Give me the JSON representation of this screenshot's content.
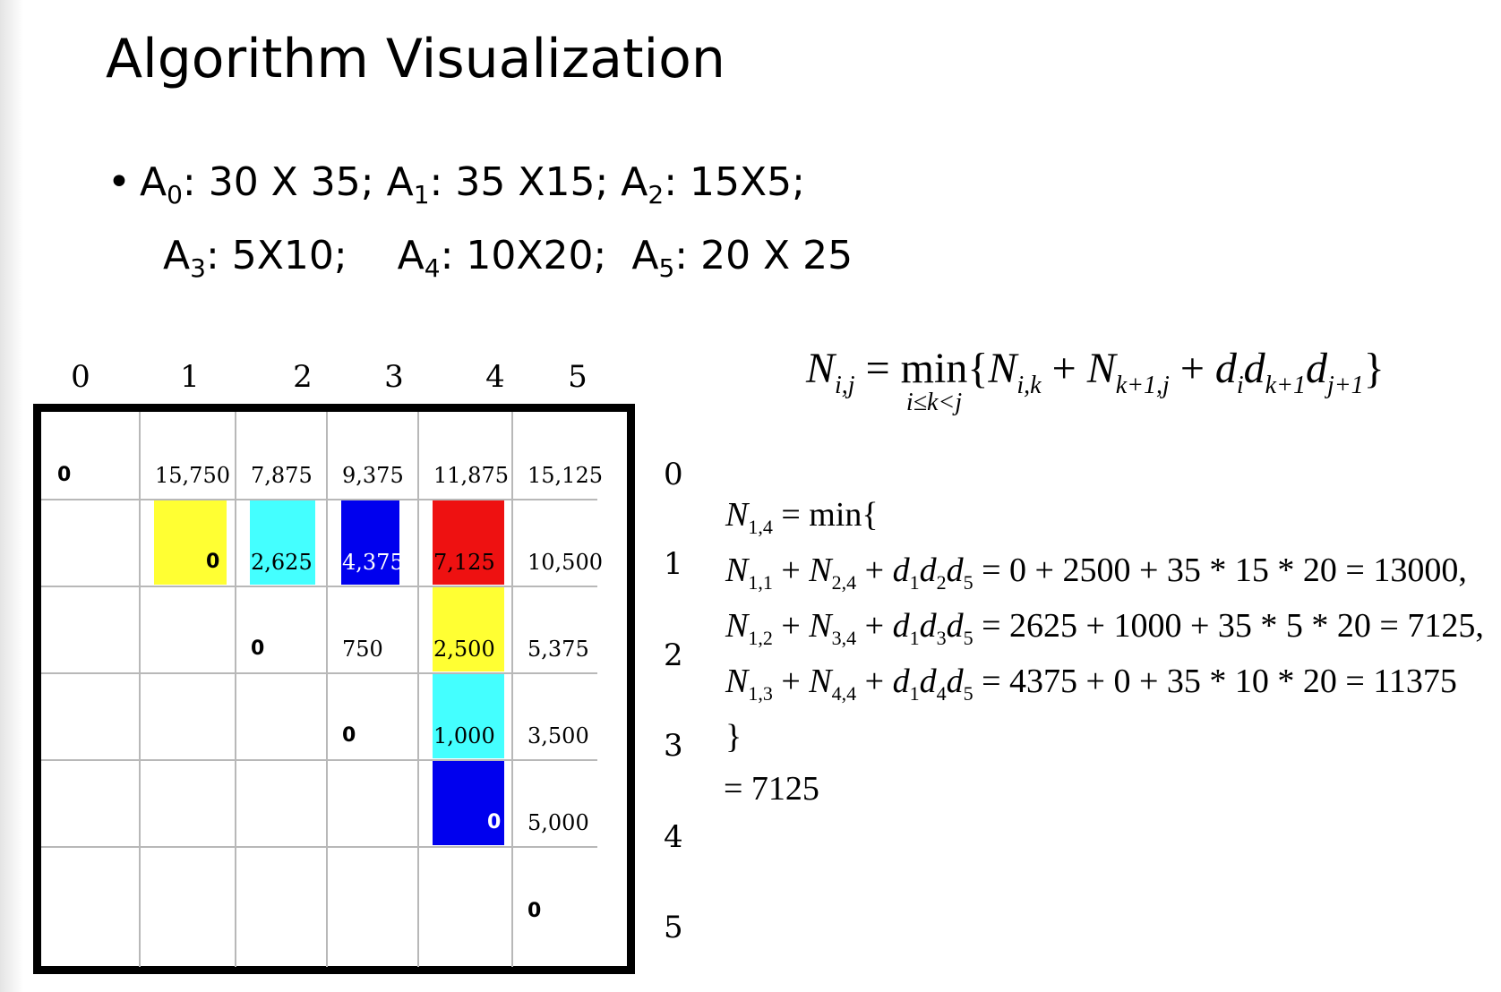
{
  "title": "Algorithm Visualization",
  "bullet": {
    "dot": "•",
    "line1": [
      {
        "name": "A",
        "sub": "0",
        "dims": ": 30 X 35; "
      },
      {
        "name": "A",
        "sub": "1",
        "dims": ": 35 X15; "
      },
      {
        "name": "A",
        "sub": "2",
        "dims": ": 15X5;"
      }
    ],
    "line2": [
      {
        "name": "A",
        "sub": "3",
        "dims": ": 5X10;    "
      },
      {
        "name": "A",
        "sub": "4",
        "dims": ": 10X20;  "
      },
      {
        "name": "A",
        "sub": "5",
        "dims": ": 20 X 25"
      }
    ]
  },
  "table": {
    "col_indices": [
      "0",
      "1",
      "2",
      "3",
      "4",
      "5"
    ],
    "row_indices": [
      "0",
      "1",
      "2",
      "3",
      "4",
      "5"
    ],
    "rows": [
      [
        "0",
        "15,750",
        "7,875",
        "9,375",
        "11,875",
        "15,125"
      ],
      [
        "",
        "0",
        "2,625",
        "4,375",
        "7,125",
        "10,500"
      ],
      [
        "",
        "",
        "0",
        "750",
        "2,500",
        "5,375"
      ],
      [
        "",
        "",
        "",
        "0",
        "1,000",
        "3,500"
      ],
      [
        "",
        "",
        "",
        "",
        "0",
        "5,000"
      ],
      [
        "",
        "",
        "",
        "",
        "",
        "0"
      ]
    ],
    "highlights": [
      {
        "row": 1,
        "col": 1,
        "color": "#ffff33"
      },
      {
        "row": 1,
        "col": 2,
        "color": "#44ffff"
      },
      {
        "row": 1,
        "col": 3,
        "color": "#0000ee"
      },
      {
        "row": 1,
        "col": 4,
        "color": "#ee1111"
      },
      {
        "row": 2,
        "col": 4,
        "color": "#ffff33"
      },
      {
        "row": 3,
        "col": 4,
        "color": "#44ffff"
      },
      {
        "row": 4,
        "col": 4,
        "color": "#0000ee"
      }
    ]
  },
  "recurrence": {
    "lhs": "N",
    "lhs_sub": "i,j",
    "eq": " = ",
    "min": "min",
    "min_under": "i≤k<j",
    "body_open": "{",
    "t1": "N",
    "t1_sub": "i,k",
    "plus": " + ",
    "t2": "N",
    "t2_sub": "k+1,j",
    "plus2": " + ",
    "d1": "d",
    "d1_sub": "i",
    "d2": "d",
    "d2_sub": "k+1",
    "d3": "d",
    "d3_sub": "j+1",
    "body_close": "}"
  },
  "example": {
    "l0": {
      "n": "N",
      "sub": "1,4",
      "rest": " = min{"
    },
    "l1": {
      "a": "N",
      "a_sub": "1,1",
      "b": "N",
      "b_sub": "2,4",
      "d1_sub": "1",
      "d2_sub": "2",
      "d3_sub": "5",
      "rhs": " = 0 + 2500 + 35 * 15 * 20 = 13000,"
    },
    "l2": {
      "a": "N",
      "a_sub": "1,2",
      "b": "N",
      "b_sub": "3,4",
      "d1_sub": "1",
      "d2_sub": "3",
      "d3_sub": "5",
      "rhs": " = 2625 + 1000 + 35 * 5 * 20 = 7125,"
    },
    "l3": {
      "a": "N",
      "a_sub": "1,3",
      "b": "N",
      "b_sub": "4,4",
      "d1_sub": "1",
      "d2_sub": "4",
      "d3_sub": "5",
      "rhs": " = 4375 + 0 + 35 * 10 * 20 = 11375"
    },
    "l4": "}",
    "l5": "= 7125",
    "plus": " + ",
    "d": "d"
  }
}
